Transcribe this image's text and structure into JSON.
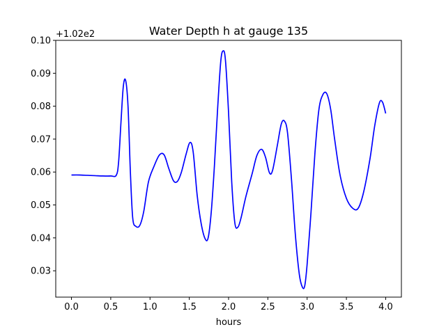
{
  "chart_data": {
    "type": "line",
    "title": "Water Depth h at gauge 135",
    "xlabel": "hours",
    "ylabel": "",
    "y_offset_label": "+1.02e2",
    "xlim": [
      -0.2,
      4.2
    ],
    "ylim": [
      0.022,
      0.1
    ],
    "x_ticks": [
      0.0,
      0.5,
      1.0,
      1.5,
      2.0,
      2.5,
      3.0,
      3.5,
      4.0
    ],
    "x_tick_labels": [
      "0.0",
      "0.5",
      "1.0",
      "1.5",
      "2.0",
      "2.5",
      "3.0",
      "3.5",
      "4.0"
    ],
    "y_ticks": [
      0.03,
      0.04,
      0.05,
      0.06,
      0.07,
      0.08,
      0.09,
      0.1
    ],
    "y_tick_labels": [
      "0.03",
      "0.04",
      "0.05",
      "0.06",
      "0.07",
      "0.08",
      "0.09",
      "0.10"
    ],
    "grid": false,
    "series": [
      {
        "color": "#0000ff",
        "x": [
          0.0,
          0.1,
          0.2,
          0.3,
          0.4,
          0.5,
          0.57,
          0.6,
          0.63,
          0.66,
          0.69,
          0.72,
          0.75,
          0.78,
          0.82,
          0.87,
          0.92,
          0.98,
          1.05,
          1.12,
          1.18,
          1.24,
          1.3,
          1.35,
          1.4,
          1.46,
          1.51,
          1.55,
          1.6,
          1.65,
          1.7,
          1.74,
          1.78,
          1.82,
          1.86,
          1.9,
          1.93,
          1.96,
          2.0,
          2.04,
          2.08,
          2.12,
          2.16,
          2.22,
          2.3,
          2.36,
          2.42,
          2.47,
          2.52,
          2.56,
          2.62,
          2.67,
          2.71,
          2.75,
          2.8,
          2.85,
          2.9,
          2.94,
          2.97,
          3.0,
          3.05,
          3.1,
          3.15,
          3.2,
          3.25,
          3.3,
          3.35,
          3.42,
          3.5,
          3.58,
          3.65,
          3.72,
          3.8,
          3.86,
          3.92,
          3.96,
          4.0
        ],
        "y": [
          0.0591,
          0.0591,
          0.059,
          0.0589,
          0.0588,
          0.0588,
          0.059,
          0.063,
          0.075,
          0.086,
          0.0878,
          0.08,
          0.06,
          0.046,
          0.0435,
          0.0438,
          0.048,
          0.057,
          0.0617,
          0.0652,
          0.0652,
          0.061,
          0.0573,
          0.0572,
          0.06,
          0.0655,
          0.069,
          0.066,
          0.053,
          0.0445,
          0.0398,
          0.04,
          0.048,
          0.062,
          0.079,
          0.0935,
          0.0968,
          0.094,
          0.078,
          0.057,
          0.0445,
          0.0433,
          0.0462,
          0.0525,
          0.0595,
          0.065,
          0.0669,
          0.0645,
          0.0598,
          0.0605,
          0.068,
          0.0745,
          0.0755,
          0.072,
          0.058,
          0.041,
          0.029,
          0.025,
          0.0255,
          0.032,
          0.048,
          0.066,
          0.079,
          0.0835,
          0.0838,
          0.079,
          0.07,
          0.059,
          0.052,
          0.049,
          0.049,
          0.054,
          0.064,
          0.074,
          0.081,
          0.0812,
          0.0778
        ]
      }
    ]
  }
}
